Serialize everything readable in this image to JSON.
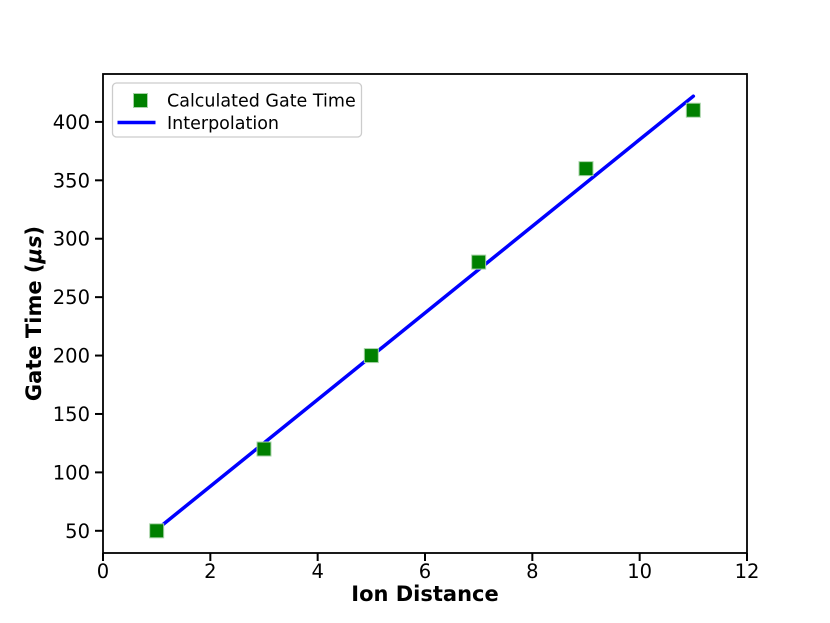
{
  "figure": {
    "background_color": "#ffffff",
    "spine_color": "#000000"
  },
  "chart_data": {
    "type": "scatter",
    "title": "",
    "xlabel": "Ion Distance",
    "ylabel": "Gate Time (μs)",
    "ylabel_parts": [
      {
        "text": "Gate Time (",
        "style": "normal"
      },
      {
        "text": "μs",
        "style": "italic"
      },
      {
        "text": ")",
        "style": "normal"
      }
    ],
    "xlim": [
      0,
      12
    ],
    "ylim": [
      31,
      441
    ],
    "x_ticks": [
      0,
      2,
      4,
      6,
      8,
      10,
      12
    ],
    "y_ticks": [
      50,
      100,
      150,
      200,
      250,
      300,
      350,
      400
    ],
    "grid": false,
    "series": [
      {
        "name": "Calculated Gate Time",
        "kind": "scatter",
        "marker": "square",
        "color": "#008000",
        "marker_edge_color": "#a7d3a7",
        "x": [
          1,
          3,
          5,
          7,
          9,
          11
        ],
        "y": [
          50,
          120,
          200,
          280,
          360,
          410
        ]
      },
      {
        "name": "Interpolation",
        "kind": "line",
        "color": "#0000ff",
        "x": [
          1,
          11
        ],
        "y": [
          51,
          422
        ]
      }
    ],
    "legend": {
      "position": "upper left",
      "labels": [
        "Calculated Gate Time",
        "Interpolation"
      ]
    }
  }
}
